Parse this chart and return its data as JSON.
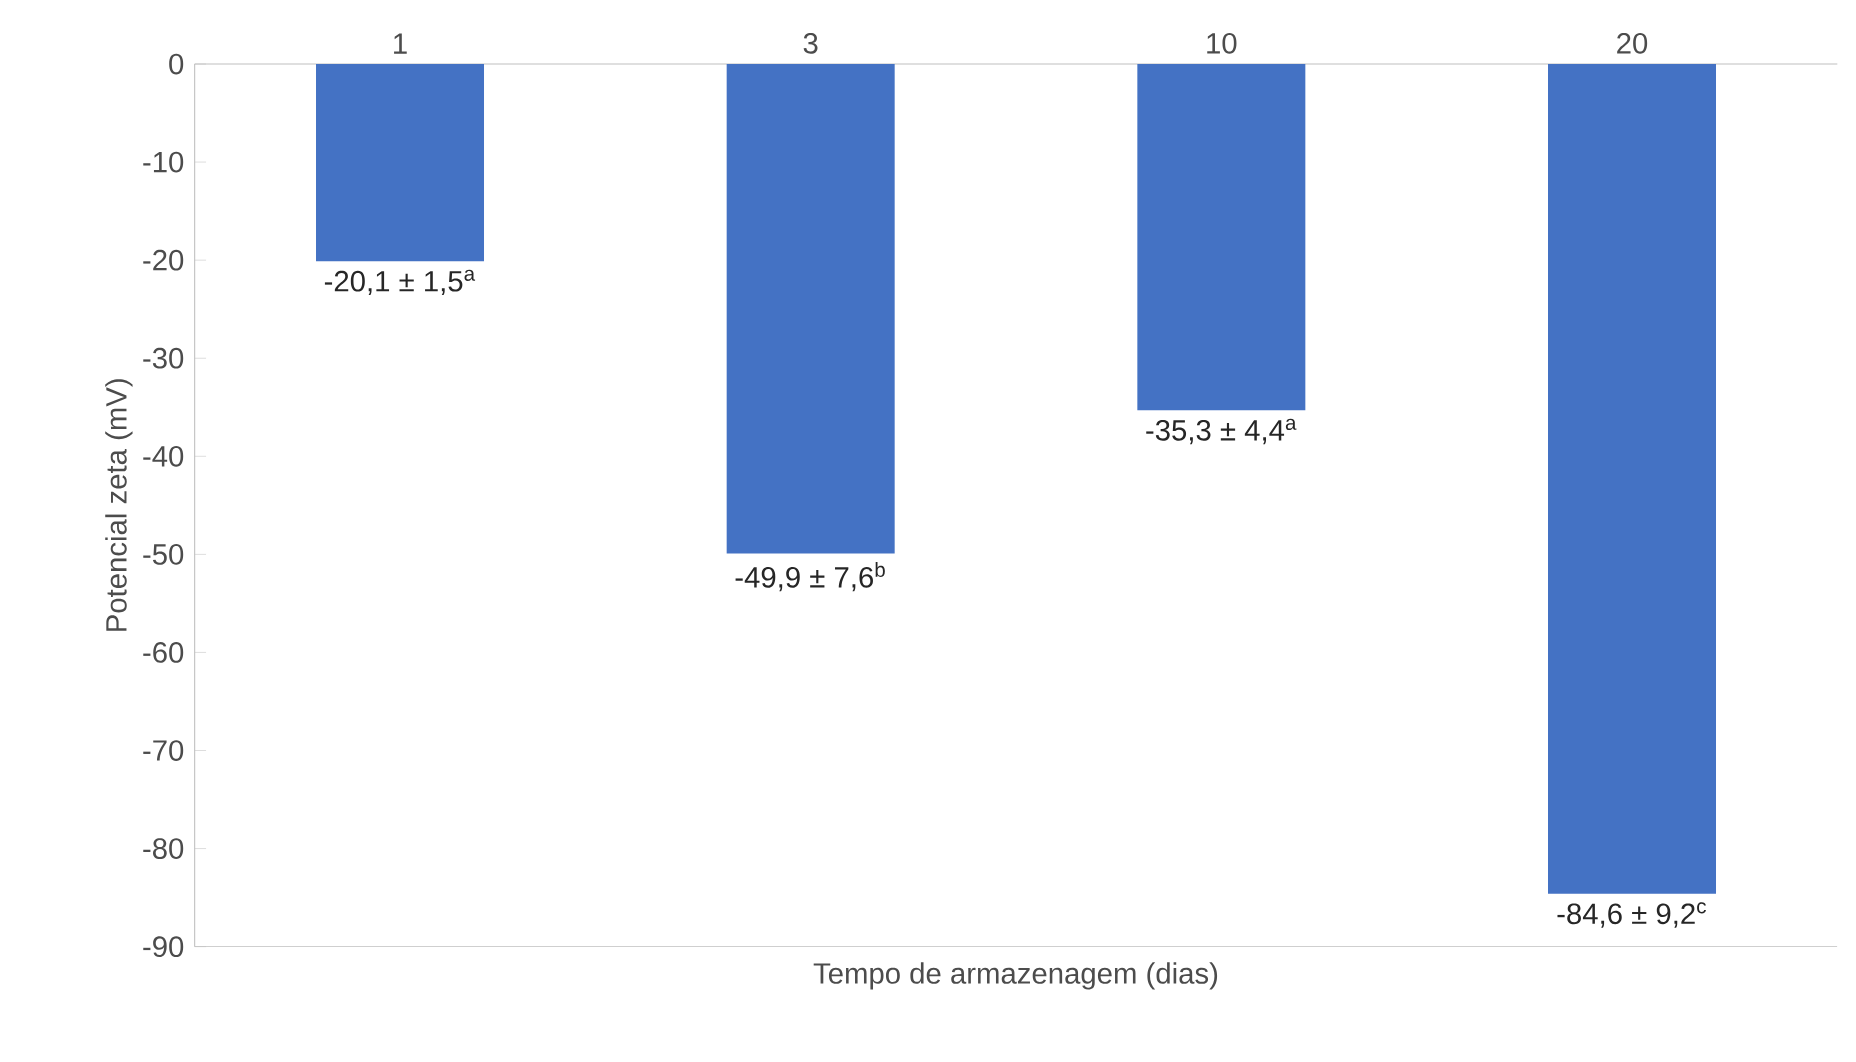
{
  "chart_data": {
    "type": "bar",
    "xlabel": "Tempo de armazenagem (dias)",
    "ylabel": "Potencial zeta (mV)",
    "categories": [
      "1",
      "3",
      "10",
      "20"
    ],
    "values": [
      -20.1,
      -49.9,
      -35.3,
      -84.6
    ],
    "value_labels": [
      "-20,1 ± 1,5$^{a}$",
      "-49,9 ± 7,6$^{b}$",
      "-35,3 ± 4,4$^{a}$",
      "-84,6 ± 9,2$^{c}$"
    ],
    "color": "#4472c4",
    "ylim": [
      -90,
      0
    ],
    "yticks": [
      -90,
      -80,
      -70,
      -60,
      -50,
      -40,
      -30,
      -20,
      -10,
      0
    ],
    "grid": false
  }
}
